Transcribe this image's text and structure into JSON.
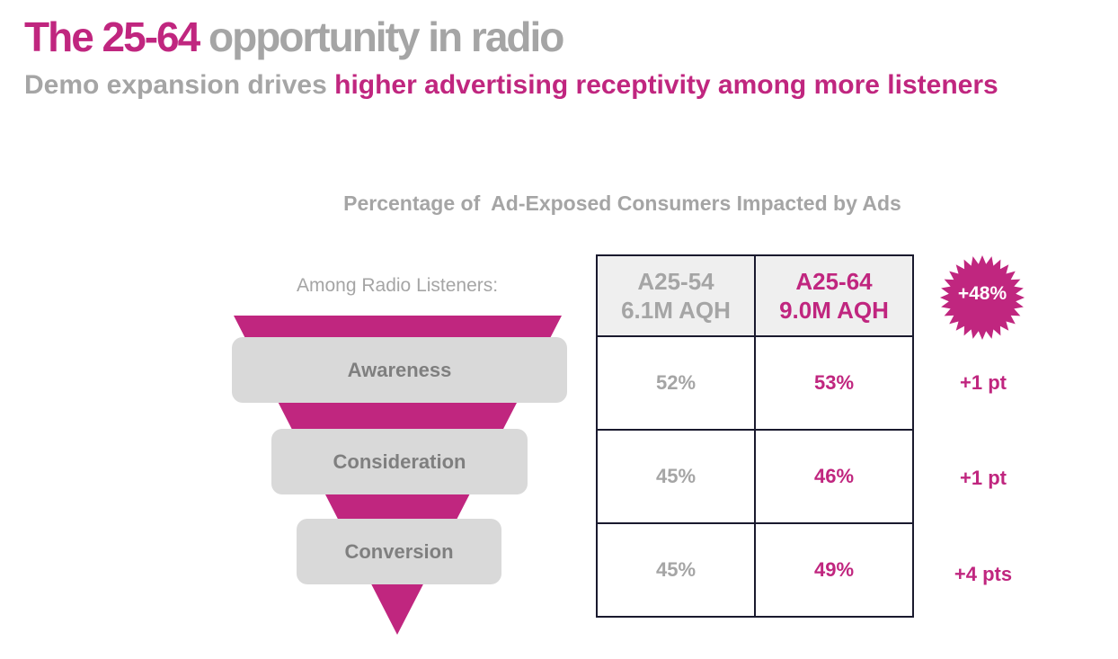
{
  "header": {
    "title_highlight": "The 25-64",
    "title_rest": " opportunity in radio",
    "subtitle_plain": "Demo expansion drives ",
    "subtitle_highlight": "higher advertising receptivity among more listeners"
  },
  "colors": {
    "accent": "#c0267f",
    "gray_text": "#a5a5a5",
    "stage_fill": "#d9d9d9",
    "stage_text": "#7f7f7f"
  },
  "funnel": {
    "caption": "Among Radio Listeners:",
    "stages": [
      "Awareness",
      "Consideration",
      "Conversion"
    ]
  },
  "chart_data": {
    "type": "table",
    "title": "Percentage of  Ad-Exposed Consumers Impacted by Ads",
    "columns": [
      {
        "demo": "A25-54",
        "aqh": "6.1M AQH"
      },
      {
        "demo": "A25-64",
        "aqh": "9.0M AQH"
      }
    ],
    "rows": [
      {
        "stage": "Awareness",
        "a25_54": "52%",
        "a25_64": "53%",
        "delta": "+1 pt"
      },
      {
        "stage": "Consideration",
        "a25_54": "45%",
        "a25_64": "46%",
        "delta": "+1 pt"
      },
      {
        "stage": "Conversion",
        "a25_54": "45%",
        "a25_64": "49%",
        "delta": "+4 pts"
      }
    ],
    "values_a25_54": [
      52,
      45,
      45
    ],
    "values_a25_64": [
      53,
      46,
      49
    ],
    "audience_growth_badge": "+48%"
  }
}
